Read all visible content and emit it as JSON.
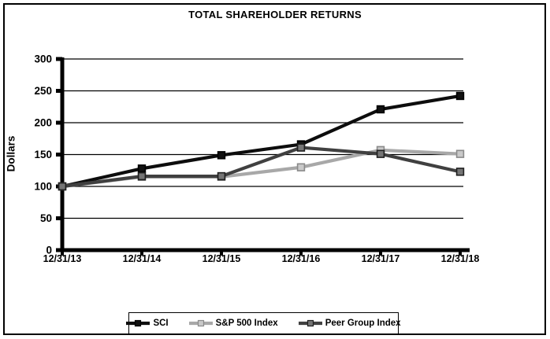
{
  "title": "TOTAL SHAREHOLDER RETURNS",
  "chart_data": {
    "type": "line",
    "title": "TOTAL SHAREHOLDER RETURNS",
    "xlabel": "",
    "ylabel": "Dollars",
    "categories": [
      "12/31/13",
      "12/31/14",
      "12/31/15",
      "12/31/16",
      "12/31/17",
      "12/31/18"
    ],
    "series": [
      {
        "name": "SCI",
        "values": [
          100,
          128,
          149,
          166,
          221,
          242
        ],
        "color": "#0d0d0d",
        "marker_fill": "#111111",
        "marker_edge": "#000000"
      },
      {
        "name": "S&P 500 Index",
        "values": [
          100,
          115,
          115,
          130,
          157,
          151
        ],
        "color": "#a8a8a8",
        "marker_fill": "#c9c9c9",
        "marker_edge": "#8a8a8a"
      },
      {
        "name": "Peer Group Index",
        "values": [
          100,
          116,
          116,
          161,
          151,
          123
        ],
        "color": "#404040",
        "marker_fill": "#757575",
        "marker_edge": "#1f1f1f"
      }
    ],
    "ylim": [
      0,
      300
    ],
    "yticks": [
      0,
      50,
      100,
      150,
      200,
      250,
      300
    ],
    "grid": true,
    "legend_position": "bottom"
  }
}
